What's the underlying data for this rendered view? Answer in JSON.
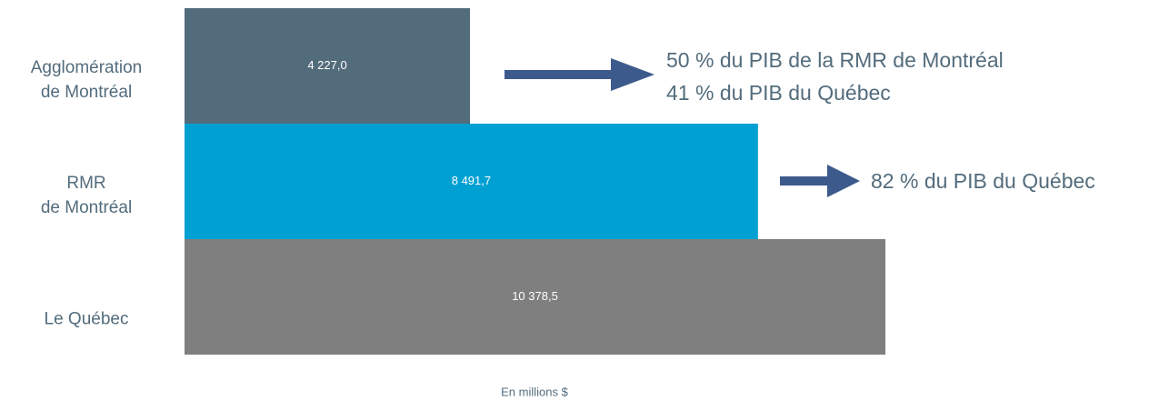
{
  "chart_data": {
    "type": "bar",
    "orientation": "horizontal",
    "categories": [
      "Agglomération\nde Montréal",
      "RMR\nde Montréal",
      "Le Québec"
    ],
    "values": [
      4227.0,
      8491.7,
      10378.5
    ],
    "value_labels": [
      "4 227,0",
      "8 491,7",
      "10 378,5"
    ],
    "colors": [
      "#536c7c",
      "#00a0d2",
      "#7f7f7f"
    ],
    "xlabel": "En millions $",
    "annotations": [
      "50 % du PIB de la RMR de Montréal",
      "41 % du PIB du Québec",
      "82 % du PIB du Québec"
    ]
  }
}
